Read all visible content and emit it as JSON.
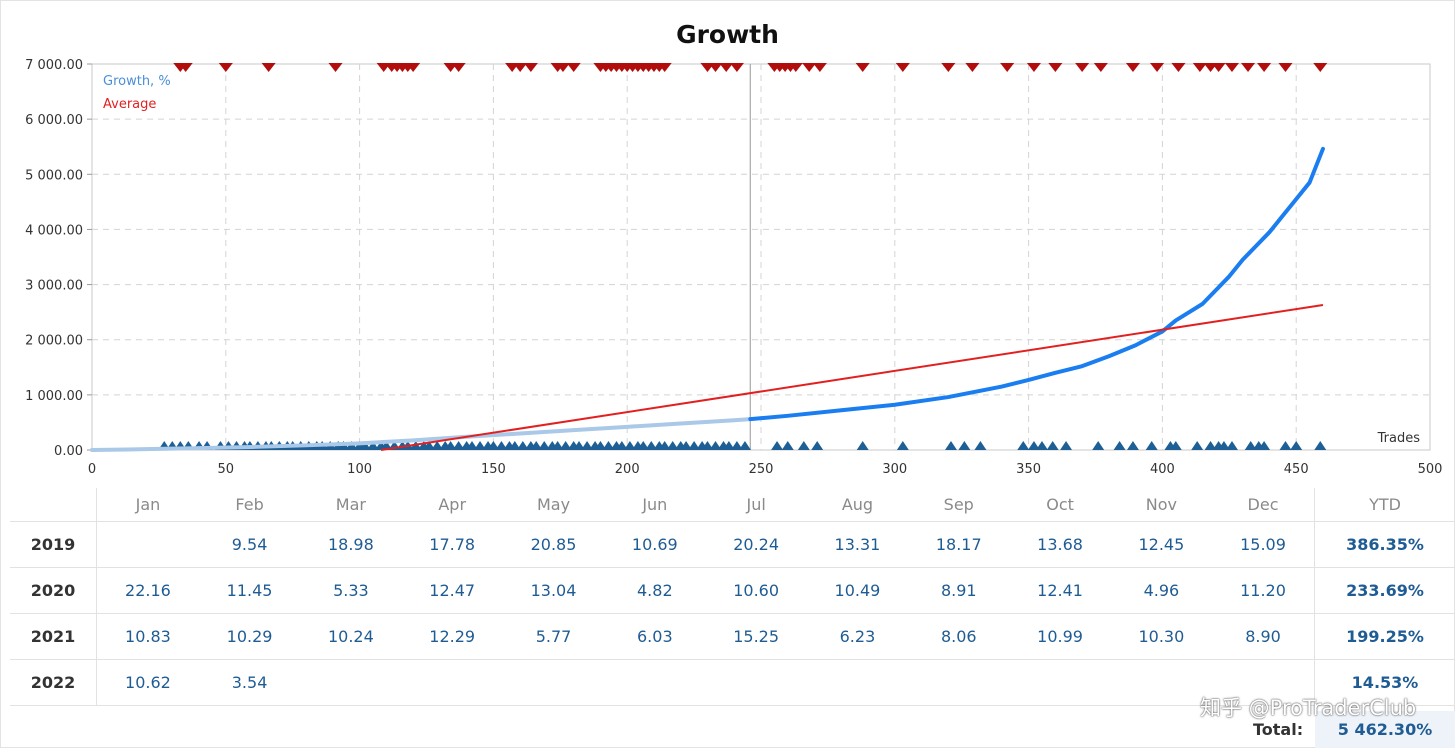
{
  "chart_data": {
    "type": "line",
    "title": "Growth",
    "xlabel": "Trades",
    "ylabel": "",
    "xlim": [
      0,
      500
    ],
    "ylim": [
      0,
      7000
    ],
    "x_ticks": [
      0,
      50,
      100,
      150,
      200,
      250,
      300,
      350,
      400,
      450,
      500
    ],
    "y_ticks": [
      0,
      1000,
      2000,
      3000,
      4000,
      5000,
      6000,
      7000
    ],
    "x_tick_labels": [
      "0",
      "50",
      "100",
      "150",
      "200",
      "250",
      "300",
      "350",
      "400",
      "450",
      "500"
    ],
    "y_tick_labels": [
      "0.00",
      "1 000.00",
      "2 000.00",
      "3 000.00",
      "4 000.00",
      "5 000.00",
      "6 000.00",
      "7 000.00"
    ],
    "grid": true,
    "legend_position": "top-left",
    "divider_x": 246,
    "series": [
      {
        "name": "Growth, %",
        "color": "#4a8fd8",
        "history_color": "#aac8e8",
        "current_color": "#1a7ef0",
        "x": [
          0,
          20,
          40,
          60,
          80,
          100,
          120,
          140,
          160,
          180,
          200,
          220,
          240,
          246,
          260,
          280,
          300,
          320,
          340,
          350,
          360,
          370,
          380,
          390,
          400,
          405,
          410,
          415,
          420,
          425,
          430,
          435,
          440,
          445,
          450,
          455,
          460
        ],
        "values": [
          0,
          15,
          35,
          55,
          85,
          120,
          175,
          240,
          300,
          360,
          420,
          480,
          540,
          560,
          620,
          720,
          820,
          960,
          1150,
          1270,
          1400,
          1520,
          1700,
          1900,
          2150,
          2350,
          2500,
          2650,
          2900,
          3150,
          3450,
          3700,
          3950,
          4250,
          4550,
          4850,
          5462
        ]
      },
      {
        "name": "Average",
        "color": "#e32020",
        "x": [
          108,
          460
        ],
        "values": [
          0,
          2630
        ]
      }
    ],
    "deposit_markers_top": [
      33,
      35,
      50,
      66,
      91,
      109,
      112,
      114,
      116,
      118,
      120,
      134,
      137,
      157,
      160,
      164,
      174,
      176,
      180,
      190,
      192,
      194,
      196,
      198,
      200,
      202,
      204,
      206,
      208,
      210,
      212,
      214,
      230,
      233,
      237,
      241,
      255,
      257,
      259,
      261,
      263,
      268,
      272,
      288,
      303,
      320,
      329,
      342,
      352,
      360,
      370,
      377,
      389,
      398,
      406,
      414,
      418,
      421,
      426,
      432,
      438,
      446,
      459
    ],
    "withdrawal_markers_bottom": [
      27,
      30,
      33,
      36,
      40,
      43,
      48,
      51,
      54,
      57,
      59,
      62,
      65,
      67,
      70,
      73,
      75,
      78,
      81,
      84,
      86,
      89,
      92,
      94,
      97,
      100,
      102,
      105,
      108,
      110,
      113,
      116,
      118,
      121,
      124,
      126,
      129,
      132,
      134,
      137,
      140,
      142,
      145,
      148,
      150,
      153,
      156,
      158,
      161,
      164,
      166,
      169,
      172,
      174,
      177,
      180,
      182,
      185,
      188,
      190,
      193,
      196,
      198,
      201,
      204,
      206,
      209,
      212,
      214,
      217,
      220,
      222,
      225,
      228,
      230,
      233,
      236,
      238,
      241,
      244,
      256,
      260,
      266,
      271,
      288,
      303,
      321,
      326,
      332,
      348,
      352,
      355,
      359,
      364,
      376,
      384,
      389,
      396,
      403,
      405,
      413,
      418,
      421,
      423,
      426,
      433,
      436,
      438,
      446,
      450,
      459
    ]
  },
  "table": {
    "months": [
      "Jan",
      "Feb",
      "Mar",
      "Apr",
      "May",
      "Jun",
      "Jul",
      "Aug",
      "Sep",
      "Oct",
      "Nov",
      "Dec"
    ],
    "ytd_header": "YTD",
    "rows": [
      {
        "year": "2019",
        "values": [
          "",
          "9.54",
          "18.98",
          "17.78",
          "20.85",
          "10.69",
          "20.24",
          "13.31",
          "18.17",
          "13.68",
          "12.45",
          "15.09"
        ],
        "ytd": "386.35%"
      },
      {
        "year": "2020",
        "values": [
          "22.16",
          "11.45",
          "5.33",
          "12.47",
          "13.04",
          "4.82",
          "10.60",
          "10.49",
          "8.91",
          "12.41",
          "4.96",
          "11.20"
        ],
        "ytd": "233.69%"
      },
      {
        "year": "2021",
        "values": [
          "10.83",
          "10.29",
          "10.24",
          "12.29",
          "5.77",
          "6.03",
          "15.25",
          "6.23",
          "8.06",
          "10.99",
          "10.30",
          "8.90"
        ],
        "ytd": "199.25%"
      },
      {
        "year": "2022",
        "values": [
          "10.62",
          "3.54",
          "",
          "",
          "",
          "",
          "",
          "",
          "",
          "",
          "",
          ""
        ],
        "ytd": "14.53%"
      }
    ],
    "total_label": "Total:",
    "total_value": "5 462.30%"
  },
  "watermark": "知乎 @ProTraderClub"
}
